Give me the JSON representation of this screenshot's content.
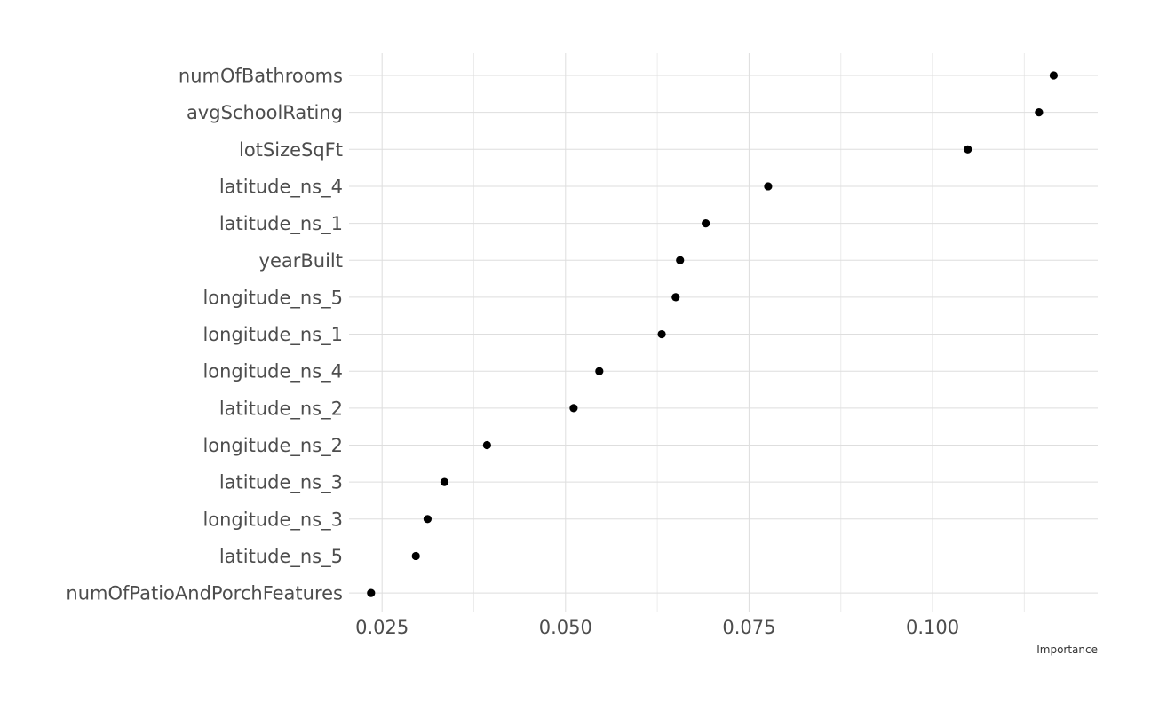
{
  "chart_data": {
    "type": "scatter",
    "title": "",
    "xlabel": "Importance",
    "ylabel": "",
    "xlim": [
      0.0205,
      0.1225
    ],
    "x_ticks": [
      0.025,
      0.05,
      0.075,
      0.1
    ],
    "x_tick_labels": [
      "0.025",
      "0.050",
      "0.075",
      "0.100"
    ],
    "grid": true,
    "legend": "none",
    "point_color": "#000000",
    "points": [
      {
        "label": "numOfBathrooms",
        "value": 0.1165
      },
      {
        "label": "avgSchoolRating",
        "value": 0.1145
      },
      {
        "label": "lotSizeSqFt",
        "value": 0.1048
      },
      {
        "label": "latitude_ns_4",
        "value": 0.0776
      },
      {
        "label": "latitude_ns_1",
        "value": 0.0691
      },
      {
        "label": "yearBuilt",
        "value": 0.0656
      },
      {
        "label": "longitude_ns_5",
        "value": 0.065
      },
      {
        "label": "longitude_ns_1",
        "value": 0.0631
      },
      {
        "label": "longitude_ns_4",
        "value": 0.0546
      },
      {
        "label": "latitude_ns_2",
        "value": 0.0511
      },
      {
        "label": "longitude_ns_2",
        "value": 0.0393
      },
      {
        "label": "latitude_ns_3",
        "value": 0.0335
      },
      {
        "label": "longitude_ns_3",
        "value": 0.0312
      },
      {
        "label": "latitude_ns_5",
        "value": 0.0296
      },
      {
        "label": "numOfPatioAndPorchFeatures",
        "value": 0.0235
      }
    ]
  }
}
